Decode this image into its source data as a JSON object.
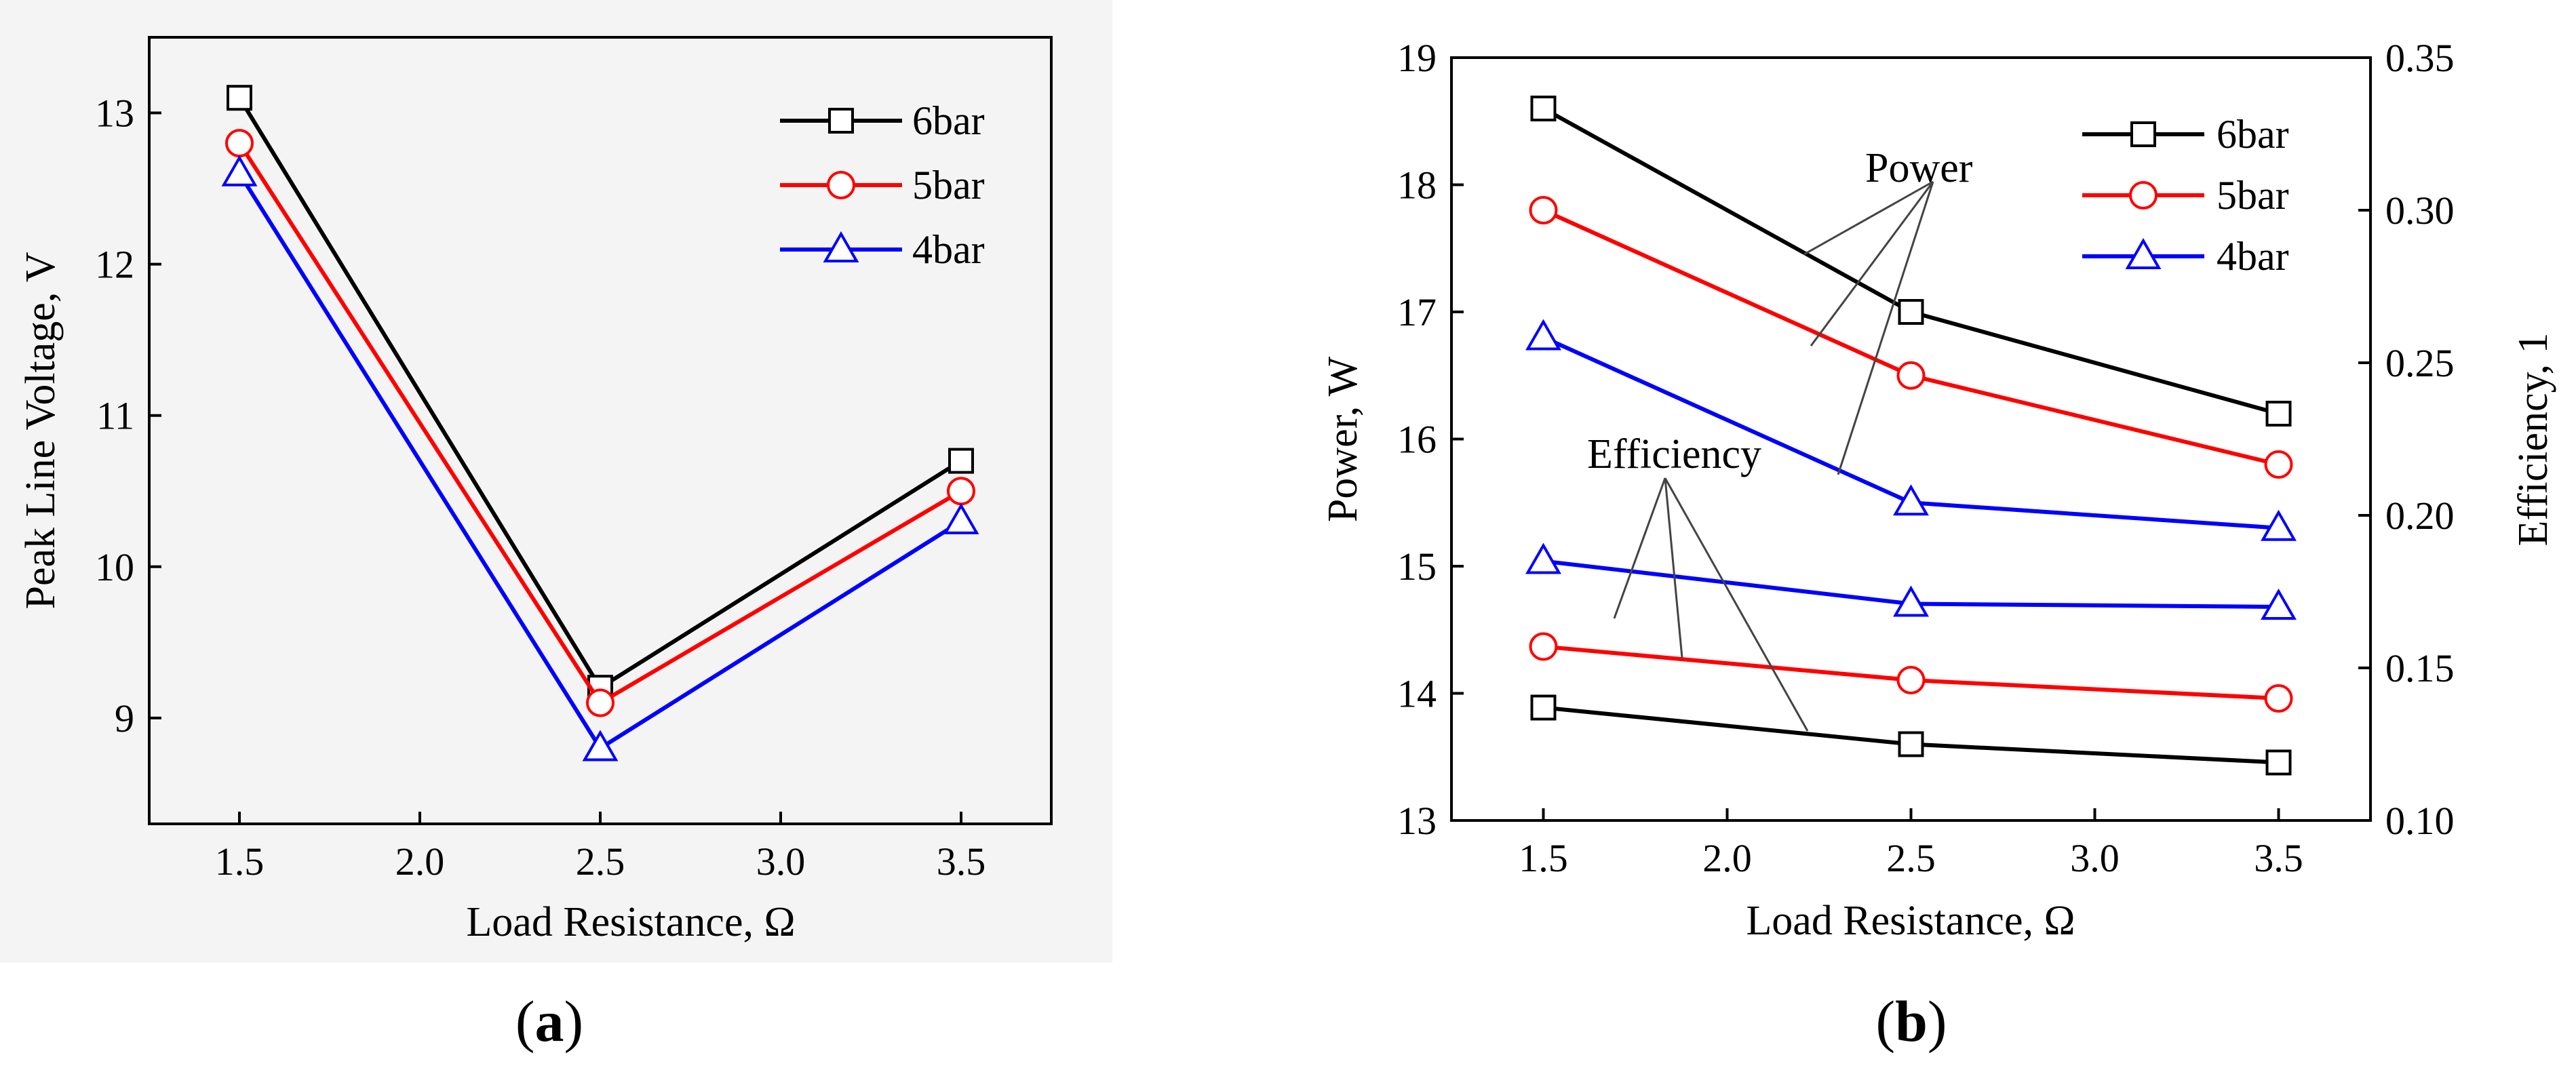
{
  "figure": {
    "panel_a_label": {
      "open": "(",
      "letter": "a",
      "close": ")"
    },
    "panel_b_label": {
      "open": "(",
      "letter": "b",
      "close": ")"
    }
  },
  "chart_data": [
    {
      "id": "a",
      "type": "line",
      "title": "",
      "xlabel": "Load Resistance, Ω",
      "ylabel": "Peak Line Voltage, V",
      "xlim": [
        1.25,
        3.75
      ],
      "ylim": [
        8.3,
        13.5
      ],
      "xticks": [
        "1.5",
        "2.0",
        "2.5",
        "3.0",
        "3.5"
      ],
      "yticks": [
        "9",
        "10",
        "11",
        "12",
        "13"
      ],
      "x": [
        1.5,
        2.5,
        3.5
      ],
      "series": [
        {
          "name": "6bar",
          "color": "#000000",
          "marker": "square",
          "values": [
            13.1,
            9.2,
            10.7
          ]
        },
        {
          "name": "5bar",
          "color": "#ff0000",
          "marker": "circle",
          "values": [
            12.8,
            9.1,
            10.5
          ]
        },
        {
          "name": "4bar",
          "color": "#0000ff",
          "marker": "triangle",
          "values": [
            12.6,
            8.8,
            10.3
          ]
        }
      ],
      "legend": "top-right"
    },
    {
      "id": "b",
      "type": "line",
      "title": "",
      "xlabel": "Load Resistance, Ω",
      "ylabel": "Power, W",
      "y2label": "Efficiency, 1",
      "xlim": [
        1.25,
        3.75
      ],
      "ylim": [
        13,
        19
      ],
      "y2lim": [
        0.1,
        0.35
      ],
      "xticks": [
        "1.5",
        "2.0",
        "2.5",
        "3.0",
        "3.5"
      ],
      "yticks": [
        "13",
        "14",
        "15",
        "16",
        "17",
        "18",
        "19"
      ],
      "y2ticks": [
        "0.10",
        "0.15",
        "0.20",
        "0.25",
        "0.30",
        "0.35"
      ],
      "x": [
        1.5,
        2.5,
        3.5
      ],
      "series": [
        {
          "name": "6bar",
          "color": "#000000",
          "marker": "square",
          "axis": "left",
          "quantity": "Power",
          "values": [
            18.6,
            17.0,
            16.2
          ]
        },
        {
          "name": "5bar",
          "color": "#ff0000",
          "marker": "circle",
          "axis": "left",
          "quantity": "Power",
          "values": [
            17.8,
            16.5,
            15.8
          ]
        },
        {
          "name": "4bar",
          "color": "#0000ff",
          "marker": "triangle",
          "axis": "left",
          "quantity": "Power",
          "values": [
            16.8,
            15.5,
            15.3
          ]
        },
        {
          "name": "6bar",
          "color": "#000000",
          "marker": "square",
          "axis": "right",
          "quantity": "Efficiency",
          "values": [
            0.137,
            0.125,
            0.119
          ]
        },
        {
          "name": "5bar",
          "color": "#ff0000",
          "marker": "circle",
          "axis": "right",
          "quantity": "Efficiency",
          "values": [
            0.157,
            0.146,
            0.14
          ]
        },
        {
          "name": "4bar",
          "color": "#0000ff",
          "marker": "triangle",
          "axis": "right",
          "quantity": "Efficiency",
          "values": [
            0.185,
            0.171,
            0.17
          ]
        }
      ],
      "annotations": [
        "Power",
        "Efficiency"
      ],
      "legend": "top-right"
    }
  ]
}
